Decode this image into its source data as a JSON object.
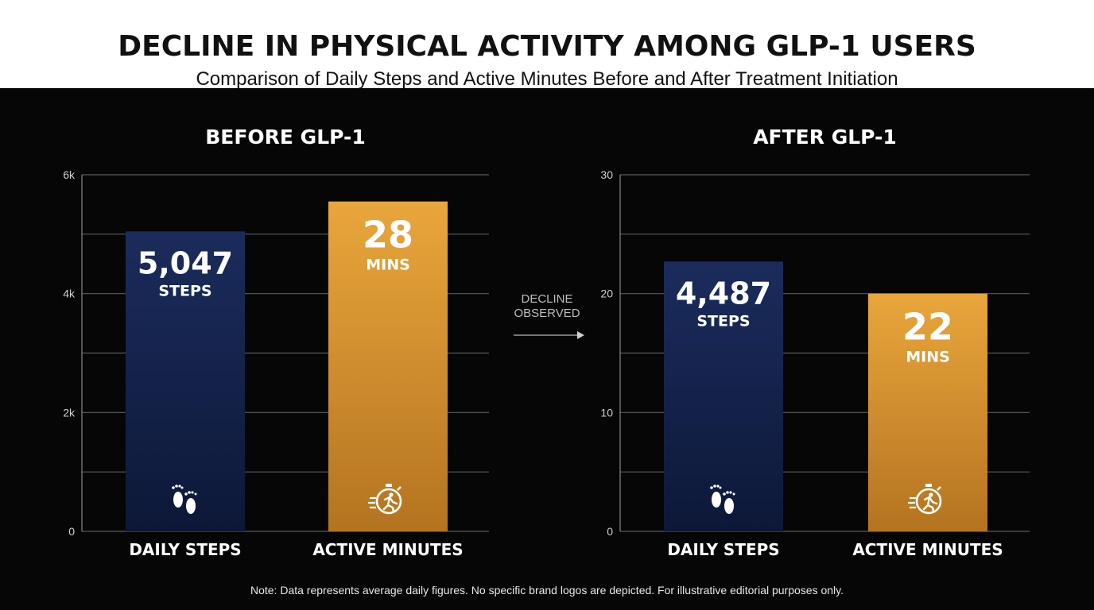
{
  "header": {
    "title": "DECLINE IN PHYSICAL ACTIVITY AMONG GLP-1 USERS",
    "subtitle": "Comparison of Daily Steps and Active Minutes Before and After Treatment Initiation"
  },
  "transition": {
    "line1": "DECLINE",
    "line2": "OBSERVED"
  },
  "note": "Note: Data represents average daily figures. No specific brand logos are depicted. For illustrative editorial purposes only.",
  "colors": {
    "steps_top": "#1b2c5c",
    "steps_bottom": "#0d1838",
    "minutes_top": "#e9a63c",
    "minutes_bottom": "#b47420",
    "grid": "#5a5a5a",
    "background": "#060606"
  },
  "chart_data": [
    {
      "type": "bar",
      "title": "BEFORE GLP-1",
      "categories": [
        "DAILY STEPS",
        "ACTIVE MINUTES"
      ],
      "values": [
        5047,
        28
      ],
      "value_labels": [
        "5,047",
        "28"
      ],
      "unit_labels": [
        "STEPS",
        "MINS"
      ],
      "icons": [
        "footprints-icon",
        "stopwatch-runner-icon"
      ],
      "yticks": [
        0,
        1000,
        2000,
        3000,
        4000,
        5000,
        6000
      ],
      "ytick_labels": [
        "0",
        "",
        "2k",
        "",
        "4k",
        "",
        "6k"
      ],
      "ylim": [
        0,
        6000
      ],
      "bar_heights_in_axis_units": [
        5047,
        5550
      ],
      "grid": true
    },
    {
      "type": "bar",
      "title": "AFTER GLP-1",
      "categories": [
        "DAILY STEPS",
        "ACTIVE MINUTES"
      ],
      "values": [
        4487,
        22
      ],
      "value_labels": [
        "4,487",
        "22"
      ],
      "unit_labels": [
        "STEPS",
        "MINS"
      ],
      "icons": [
        "footprints-icon",
        "stopwatch-runner-icon"
      ],
      "yticks": [
        0,
        5,
        10,
        15,
        20,
        25,
        30
      ],
      "ytick_labels": [
        "0",
        "",
        "10",
        "",
        "20",
        "",
        "30"
      ],
      "ylim": [
        0,
        30
      ],
      "bar_heights_in_axis_units": [
        22.7,
        20
      ],
      "grid": true
    }
  ]
}
